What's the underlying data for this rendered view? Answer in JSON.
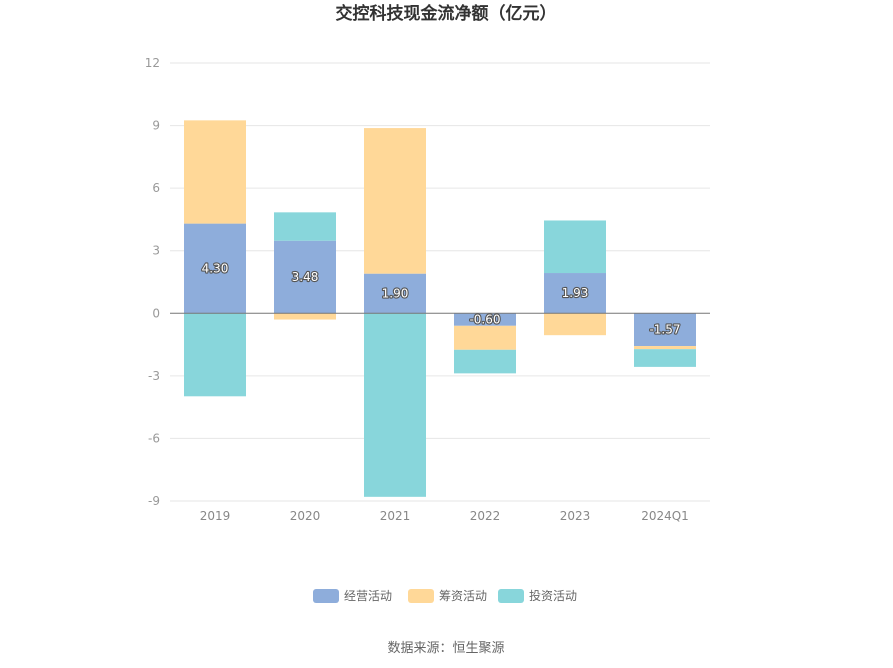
{
  "chart_data": {
    "type": "bar",
    "stacked": true,
    "title": "交控科技现金流净额（亿元）",
    "categories": [
      "2019",
      "2020",
      "2021",
      "2022",
      "2023",
      "2024Q1"
    ],
    "series": [
      {
        "name": "经营活动",
        "values": [
          4.3,
          3.48,
          1.9,
          -0.6,
          1.93,
          -1.57
        ],
        "color": "#8eaddb",
        "show_labels": true
      },
      {
        "name": "筹资活动",
        "values": [
          4.95,
          -0.3,
          6.98,
          -1.15,
          -1.05,
          -0.15
        ],
        "color": "#ffd898",
        "show_labels": false
      },
      {
        "name": "投资活动",
        "values": [
          -3.98,
          1.36,
          -8.8,
          -1.13,
          2.52,
          -0.85
        ],
        "color": "#88d6db",
        "show_labels": false
      }
    ],
    "data_labels": [
      "4.30",
      "3.48",
      "1.90",
      "-0.60",
      "1.93",
      "-1.57"
    ],
    "yticks": [
      "12",
      "9",
      "6",
      "3",
      "0",
      "-3",
      "-6",
      "-9"
    ],
    "ylim": [
      -9,
      12
    ],
    "grid": true,
    "legend_position": "bottom-center",
    "xlabel": "",
    "ylabel": ""
  },
  "source": "数据来源：恒生聚源"
}
